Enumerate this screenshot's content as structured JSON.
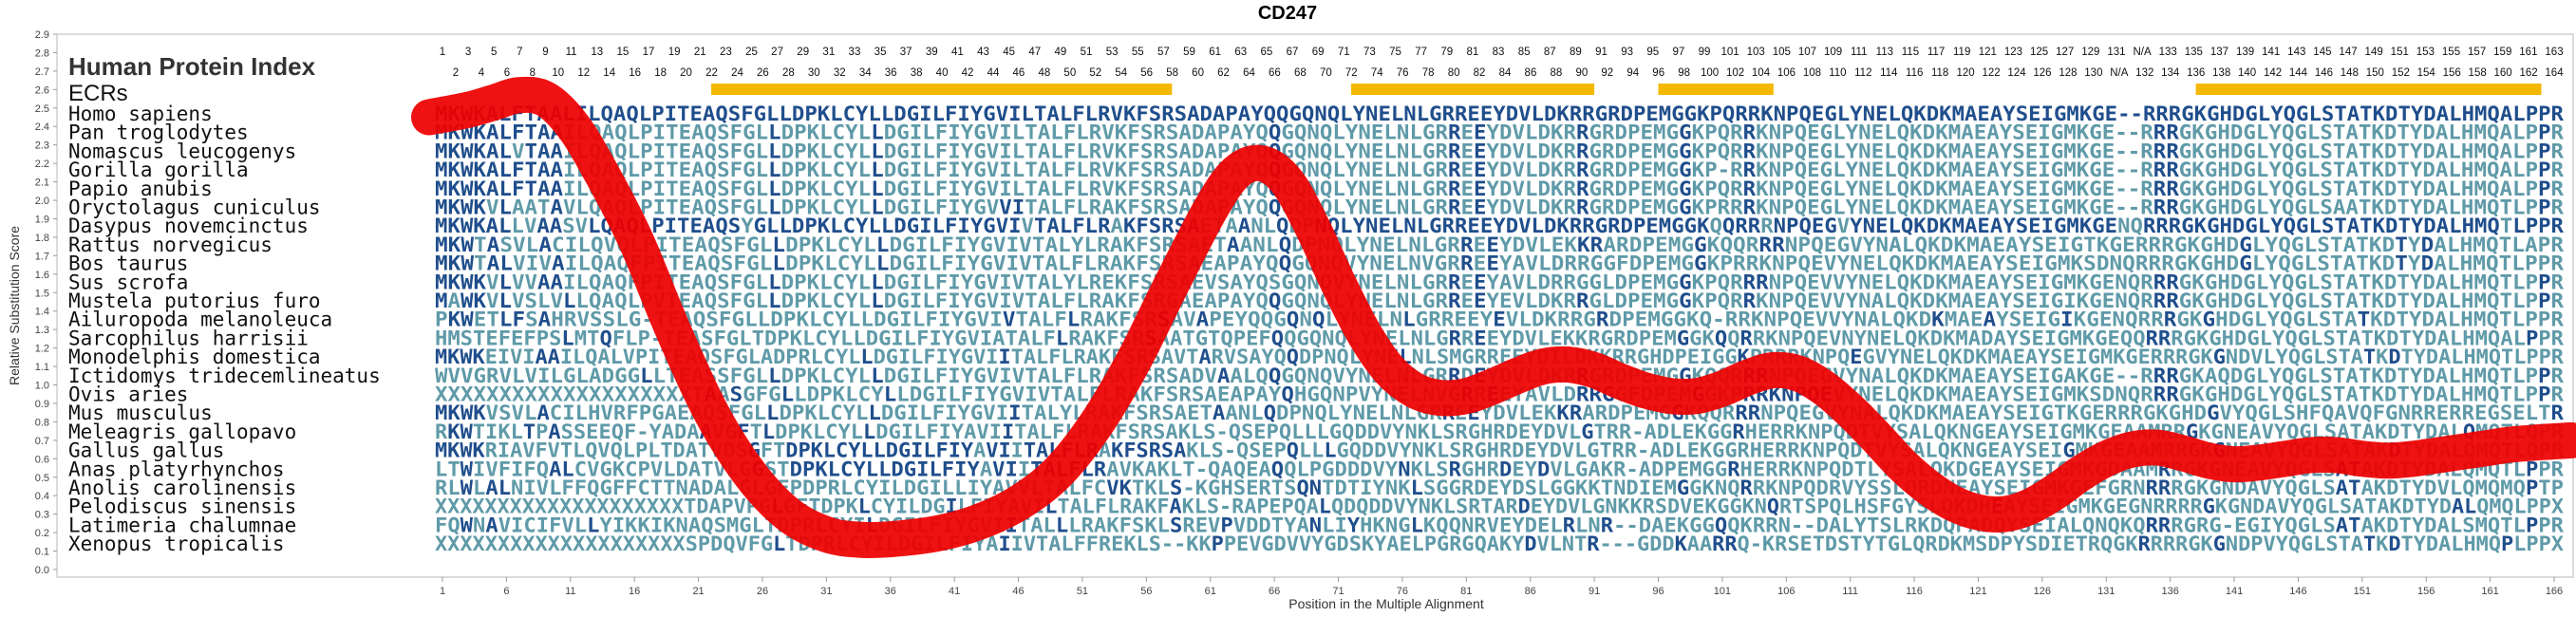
{
  "chart_data": {
    "type": "line",
    "title": "CD247",
    "xlabel": "Position in the Multiple Alignment",
    "ylabel": "Relative Substitution Score",
    "ylim": [
      0.0,
      2.9
    ],
    "yticks": [
      "0.0",
      "0.1",
      "0.2",
      "0.3",
      "0.4",
      "0.5",
      "0.6",
      "0.7",
      "0.8",
      "0.9",
      "1.0",
      "1.1",
      "1.2",
      "1.3",
      "1.4",
      "1.5",
      "1.6",
      "1.7",
      "1.8",
      "1.9",
      "2.0",
      "2.1",
      "2.2",
      "2.3",
      "2.4",
      "2.5",
      "2.6",
      "2.7",
      "2.8",
      "2.9"
    ],
    "xticks": [
      "1",
      "6",
      "11",
      "16",
      "21",
      "26",
      "31",
      "36",
      "41",
      "46",
      "51",
      "56",
      "61",
      "66",
      "71",
      "76",
      "81",
      "86",
      "91",
      "96",
      "101",
      "106",
      "111",
      "116",
      "121",
      "126",
      "131",
      "136",
      "141",
      "146",
      "151",
      "156",
      "161",
      "166"
    ],
    "top_row_1": [
      "1",
      "3",
      "5",
      "7",
      "9",
      "11",
      "13",
      "15",
      "17",
      "19",
      "21",
      "23",
      "25",
      "27",
      "29",
      "31",
      "33",
      "35",
      "37",
      "39",
      "41",
      "43",
      "45",
      "47",
      "49",
      "51",
      "53",
      "55",
      "57",
      "59",
      "61",
      "63",
      "65",
      "67",
      "69",
      "71",
      "73",
      "75",
      "77",
      "79",
      "81",
      "83",
      "85",
      "87",
      "89",
      "91",
      "93",
      "95",
      "97",
      "99",
      "101",
      "103",
      "105",
      "107",
      "109",
      "111",
      "113",
      "115",
      "117",
      "119",
      "121",
      "123",
      "125",
      "127",
      "129",
      "131",
      "N/A",
      "133",
      "135",
      "137",
      "139",
      "141",
      "143",
      "145",
      "147",
      "149",
      "151",
      "153",
      "155",
      "157",
      "159",
      "161",
      "163"
    ],
    "top_row_2": [
      "2",
      "4",
      "6",
      "8",
      "10",
      "12",
      "14",
      "16",
      "18",
      "20",
      "22",
      "24",
      "26",
      "28",
      "30",
      "32",
      "34",
      "36",
      "38",
      "40",
      "42",
      "44",
      "46",
      "48",
      "50",
      "52",
      "54",
      "56",
      "58",
      "60",
      "62",
      "64",
      "66",
      "68",
      "70",
      "72",
      "74",
      "76",
      "78",
      "80",
      "82",
      "84",
      "86",
      "88",
      "90",
      "92",
      "94",
      "96",
      "98",
      "100",
      "102",
      "104",
      "106",
      "108",
      "110",
      "112",
      "114",
      "116",
      "118",
      "120",
      "122",
      "124",
      "126",
      "128",
      "130",
      "N/A",
      "132",
      "134",
      "136",
      "138",
      "140",
      "142",
      "144",
      "146",
      "148",
      "150",
      "152",
      "154",
      "156",
      "158",
      "160",
      "162",
      "164"
    ],
    "header_left": "Human Protein Index",
    "ecr_label": "ECRs",
    "ecr_ranges": [
      [
        22,
        58
      ],
      [
        72,
        91
      ],
      [
        96,
        105
      ],
      [
        138,
        165
      ]
    ],
    "x": [
      0.5,
      3,
      5,
      7,
      9,
      11,
      13,
      16,
      19,
      22,
      25,
      28,
      31,
      34,
      37,
      40,
      43,
      46,
      49,
      52,
      55,
      58,
      61,
      63,
      65,
      67,
      69,
      71,
      73,
      75,
      77,
      79,
      81,
      83,
      85,
      87,
      89,
      91,
      93,
      95,
      97,
      99,
      101,
      103,
      105,
      107,
      109,
      111,
      113,
      115,
      117,
      119,
      121,
      123,
      125,
      127,
      129,
      131,
      133,
      135,
      137,
      139,
      141,
      143,
      145,
      147,
      149,
      151,
      153,
      155,
      157,
      159,
      161,
      163,
      166
    ],
    "y": [
      2.45,
      2.49,
      2.53,
      2.57,
      2.55,
      2.42,
      2.2,
      1.8,
      1.3,
      0.85,
      0.52,
      0.3,
      0.19,
      0.16,
      0.17,
      0.2,
      0.26,
      0.36,
      0.52,
      0.78,
      1.13,
      1.55,
      1.95,
      2.15,
      2.2,
      2.1,
      1.85,
      1.55,
      1.28,
      1.08,
      0.97,
      0.93,
      0.94,
      0.99,
      1.05,
      1.1,
      1.11,
      1.08,
      1.02,
      0.97,
      0.94,
      0.94,
      0.98,
      1.04,
      1.08,
      1.06,
      0.98,
      0.86,
      0.72,
      0.57,
      0.45,
      0.36,
      0.31,
      0.3,
      0.34,
      0.42,
      0.52,
      0.6,
      0.65,
      0.66,
      0.63,
      0.59,
      0.57,
      0.58,
      0.6,
      0.62,
      0.62,
      0.6,
      0.59,
      0.6,
      0.62,
      0.64,
      0.66,
      0.68,
      0.7
    ],
    "line_color": "#ee0000",
    "ecr_color": "#f5b800",
    "conserved_color": "#1f4e8c",
    "variable_color": "#5f9aa8",
    "grid": false,
    "species": [
      "Homo sapiens",
      "Pan troglodytes",
      "Nomascus leucogenys",
      "Gorilla gorilla",
      "Papio anubis",
      "Oryctolagus cuniculus",
      "Dasypus novemcinctus",
      "Rattus norvegicus",
      "Bos taurus",
      "Sus scrofa",
      "Mustela putorius furo",
      "Ailuropoda melanoleuca",
      "Sarcophilus harrisii",
      "Monodelphis domestica",
      "Ictidomys tridecemlineatus",
      "Ovis aries",
      "Mus musculus",
      "Meleagris gallopavo",
      "Gallus gallus",
      "Anas platyrhynchos",
      "Anolis carolinensis",
      "Pelodiscus sinensis",
      "Latimeria chalumnae",
      "Xenopus tropicalis"
    ],
    "sequences": [
      "MKWKALFTAALILQAQLPITEAQSFGLLDPKLCYLLDGILFIYGVILTALFLRVKFSRSADAPAYQQGQNQLYNELNLGRREEYDVLDKRRGRDPEMGGKPQRRKNPQEGLYNELQKDKMAEAYSEIGMKGE--RRRGKGHDGLYQGLSTATKDTYDALHMQALPPR",
      "MKWKALFTAAILQAQLPITEAQSFGLLDPKLCYLLDGILFIYGVILTALFLRVKFSRSADAPAYQQGQNQLYNELNLGRREEYDVLDKRRGRDPEMGGKPQRRKNPQEGLYNELQKDKMAEAYSEIGMKGE--RRRGKGHDGLYQGLSTATKDTYDALHMQALPPR",
      "MKWKALVTAAILQAQLPITEAQSFGLLDPKLCYLLDGILFIYGVILTALFLRVKFSRSADAPAYQQGQNQLYNELNLGRREEYDVLDKRRGRDPEMGGKPQRRKNPQEGLYNELQKDKMAEAYSEIGMKGE--RRRGKGHDGLYQGLSTATKDTYDALHMQALPPR",
      "MKWKALFTAAILQAQLPITEAQSFGLLDPKLCYLLDGILFIYGVILTALFLRVKFSRSADAPAYQQGQNQLYNELNLGRREEYDVLDKRRGRDPEMGGKP-RRKNPQEGLYNELQKDKMAEAYSEIGMKGE--RRRGKGHDGLYQGLSTATKDTYDALHMQALPPR",
      "MKWKALFTAAILQAQLPITEAQSFGLLDPKLCYLLDGILFIYGVILTALFLRVKFSRSADAPAYQQGQNQLYNELNLGRREEYDVLDKRRGRDPEMGGKPQRRKNPQEGLYNELQKDKMAEAYSEIGMKGE--RRRGKGHDGLYQGLSTATKDTYDALHMQALPPR",
      "MKWKVLAATAVLQAQLPITEAQSFGLLDPKLCYLLDGILFIYGVVITALFLRAKFSRSADAPAYQQGQNQLYNELNLGRREEYDVLDKRRGRDPEMGGKPRRRKNPQEGLYNELQKDKMAEAYSEIGMKGE--RRRGKGHDGLYQGLSAATKDTYDALHMQTLPPR",
      "MKWKALLVAASVLQAQLPITEAQSYGLLDPKLCYLLDGILFIYGVIVTALFLRAKFSRSAETAANLQDPNQLYNELNLGRREEYDVLDKRRGRDPEMGGKQQRRRNPQEGVYNELQKDKMAEAYSEIGMKGENQRRRGKGHDGLYQGLSTATKDTYDALHMQTLPPR",
      "MKWTASVLACILQVQLPITEAQSFGLLDPKLCYLLDGILFIYGVIVTALYLRAKFSRSAETAANLQDPNQLYNELNLGRREEYDVLEKKRARDPEMGGKQQRRRNPQEGVYNALQKDKMAEAYSEIGTKGERRRGKGHDGLYQGLSTATKDTYDALHMQTLAPR",
      "MKWTALVIVAILQAQFPITEAQSFGLLDPKLCYLLDGILFIYGVIVTALFLRAKFSRSAEAPAYQQGQNQVYNELNVGRREEYAVLDRRGGFDPEMGGKPRRKNPQEVYNELQKDKMAEAYSEIGMKSDNQRRRGKGHDGLYQGLSTATKDTYDALHMQTLPPR",
      "MKWKVLVVAAILQAQFPITEAQSFGLLDPKLCYLLDGILFIYGVIVTALYLREKFSRSAEVSAYQSGQNQVYNELNLGRREEYAVLDRRGGLDPEMGGKPQRRRNPQEVVYNELQKDKMAEAYSEIGMKGENQRRRGKGHDGLYQGLSTATKDTYDALHMQTLPPR",
      "MAWKVLVSLVLLQAQLPVTEAQSFGLLDPKLCYLLDGILFIYGVIVTALFLRAKFSRGAEAPAYQQGQNQLYNELNLGRREEYEVLDKRRGLDPEMGGKPQRRKNPQEVVYNALQKDKMAEAYSEIGIKGENQRRRGKGHDGLYQGLSTATKDTYDALHMQTLPPR",
      "PKWETLFSAHRVSSLG-TEAQSFGLLDPKLCYLLDGILFIYGVIVTALFLRAKFSRSAVAPEYQQGQNQLYNELNLGRREEYEVLDKRRGRDPEMGGKQ-RRKNPQEVVYNALQKDKMAEAYSEIGIKGENQRRRGKGHDGLYQGLSTATKDTYDALHMQTLPPR",
      "HMSTEFEFPSLMTQFLP-TEASFGLTDPKLCYLLDGILFIYGVIATALFLRAKFSRSAATGTQPEFQQGQNQLYNELNLGRREEYDVLEKKRGRDPEMGGKQQRRKNPQEVNYNELQKDKMADAYSEIGMKGEQQRRRGKGHDGLYQGLSTATKDTYDALHMQALPPR",
      "MKWKEIVIAAILQALVPITEAQSFGLADPRLCYLLDGILFIYGVIITALFLRAKFSRSAVTARVSAYQQDPNQLYNELNLSMGRREEYDILDKKRRGHDPEIGGKPRRRKNPQEGVYNELQKDKMAEAYSEIGMKGERRRGKGNDVLYQGLSTATKDTYDALHMQTLPPR",
      "WVVGRVLVILGLADGGLLTEASSFGLLDPKLCYLLDGILFIYGVIVTALFLRAKFSRSADVAALQQGQNQVYNELNLGRRDEYDVLDKRRGRDPEMGGKQQRRRNPQEGVYNALQKDKMAEAYSEIGAKGE--RRRGKAQDGLYQGLSTATKDTYDALHMQTLPPR",
      "XXXXXXXXXXXXXXXXXXXXTAASGFGLLDPKLCYLLDGILFIYGVIVTALFLRAKFSRSAEAPAYQHGQNPVYNELNVGRREEYAVLDRRGGFDPEMGGKPRRKNPQEVYNELQKDKMAEAYSEIGMKSDNQRRRGKGHDGLYQGLSTATKDTYDALHMQTLPPR",
      "MKWKVSVLACILHVRFPGAEAQSFGLLDPKLCYLLDGILFIYGVIITALYLRAKFSRSAETAANLQDPNQLYNELNLGRREEYDVLEKKRARDPEMGGKQQRRRNPQEGVYNALQKDKMAEAYSEIGTKGERRRGKGHDGVYQGLSHFQAVQFGNRRERREGSELTR",
      "RKWTIKLTPASSEEQF-YADAAVGFTLDPKLCYLLDGILFIYAVIITALFLRAKFSRSAKLS-QSEPQLLLGQDDVYNKLSRGHRDEYDVLGTRR-ADLEKGGRHERRKNPQDTVYSALQKNGEAYSEIGMKGEAAMRRGKGNEAVYQGLSATAKDTYDALQMQTLQPR",
      "MKWKRIAVFVTLQVQLPLTDATVDSGFTDPKLCYLLDGILFIYAVIITALFLRAKFSRSAKLS-QSEPQLLLGQDDVYNKLSRGHRDEYDVLGTRR-ADLEKGGRHERRKNPQDTVYSALQKNGEAYSEIGMKGEAAMRRGKGNEAVYQGLSATAKDTYDALQMQTLQPR",
      "LTWIVFIFQALCVGKCPVLDATVLGGSTDPKLCYLLDGILFIYAVIITALFLRAVKAKLT-QAQEAQQLPGDDDVYNKLSRGHRDEYDVLGAKR-ADPEMGGRHERRKNPQDTLYSALQKDGEAYSEIGMKGDAAMRRGKGNEAVYQGLSATAKDTYDALQMQTLPPR",
      "RLWLALNIVLFFQGFFCTTNADALGLGFPDPRLCYILDGILLIYAVVLTALFCVKTKLS-KGHSERTSQNTDTIYNKLSGGRDEYDSLGGKKTNDIEMGGKNQRRKNPQDRVYSSLQRDNEAYSEIGMKGEFGRNRRRGKGNDAVYQGLSATAKDTYDVLQMQMQPTP",
      "XXXXXXXXXXXXXXXXXXXXTDAPVPGLGFTDPKLCYILDGILFIYAVILTALFLRAKFAKLS-RAPEPQALQDQDDVYNKLSRTARDEYDVLGNKKRSDVEKGGKNQRTSPQLHSFGYSLQKDHEAYSEIGMKGEGNRRRRGKGNDAVYQGLSATAKDTYDALQMQLPPX",
      "FQWNAVICIFVLLYIKKIKNAQSMGLTDPRLCYILDGILFIYGVIITALLLRAKFSKLSREVPVDDTYANLIYHKNGLKQQNRVEYDELRLNR--DAEKGGQQKRRN--DALYTSLRKDQPADQYSEIALQNQKQRRRGRG-EGIYQGLSATAKDTYDALSMQTLPPR",
      "XXXXXXXXXXXXXXXXXXXXSPDQVFGLTDPRLCYILDGILFIYAIIVTALFFREKLS--KKPPEVGDVVYGDSKYAELPGRGQAKYDVLNTR---GDDKAARRQ-KRSETDSTYTGLQRDKMSDPYSDIETRQGKRRRRGKGNDPVYQGLSTATKDTYDALHMQPLPPX"
    ]
  }
}
